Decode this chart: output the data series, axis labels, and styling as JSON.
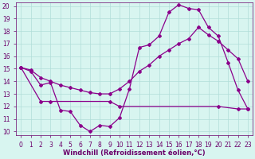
{
  "line1_x": [
    0,
    1,
    2,
    3,
    4,
    5,
    6,
    7,
    8,
    9,
    10,
    11,
    12,
    13,
    14,
    15,
    16,
    17,
    18,
    19,
    20,
    21,
    22,
    23
  ],
  "line1_y": [
    15.1,
    14.8,
    13.7,
    13.9,
    11.7,
    11.6,
    10.5,
    10.0,
    10.5,
    10.4,
    11.1,
    13.4,
    16.7,
    16.9,
    17.6,
    19.5,
    20.1,
    19.8,
    19.7,
    18.3,
    17.6,
    15.5,
    13.3,
    11.8
  ],
  "line2_x": [
    0,
    1,
    2,
    3,
    4,
    5,
    6,
    7,
    8,
    9,
    10,
    11,
    12,
    13,
    14,
    15,
    16,
    17,
    18,
    19,
    20,
    21,
    22,
    23
  ],
  "line2_y": [
    15.1,
    14.9,
    14.3,
    14.0,
    13.7,
    13.5,
    13.3,
    13.1,
    13.0,
    13.0,
    13.4,
    14.0,
    14.8,
    15.3,
    16.0,
    16.5,
    17.0,
    17.4,
    18.3,
    17.7,
    17.2,
    16.5,
    15.8,
    14.0
  ],
  "line3_x": [
    0,
    2,
    3,
    9,
    10,
    20,
    22,
    23
  ],
  "line3_y": [
    15.1,
    12.4,
    12.4,
    12.4,
    12.0,
    12.0,
    11.8,
    11.8
  ],
  "line_color": "#8B008B",
  "bg_color": "#d8f5f0",
  "grid_color": "#b0ddd8",
  "xlabel": "Windchill (Refroidissement éolien,°C)",
  "xlim": [
    0,
    23
  ],
  "ylim": [
    10,
    20
  ],
  "yticks": [
    10,
    11,
    12,
    13,
    14,
    15,
    16,
    17,
    18,
    19,
    20
  ],
  "xticks": [
    0,
    1,
    2,
    3,
    4,
    5,
    6,
    7,
    8,
    9,
    10,
    11,
    12,
    13,
    14,
    15,
    16,
    17,
    18,
    19,
    20,
    21,
    22,
    23
  ],
  "marker": "D",
  "markersize": 2,
  "linewidth": 0.9,
  "xlabel_fontsize": 6,
  "tick_fontsize": 5.5,
  "tick_color": "#6a006a"
}
